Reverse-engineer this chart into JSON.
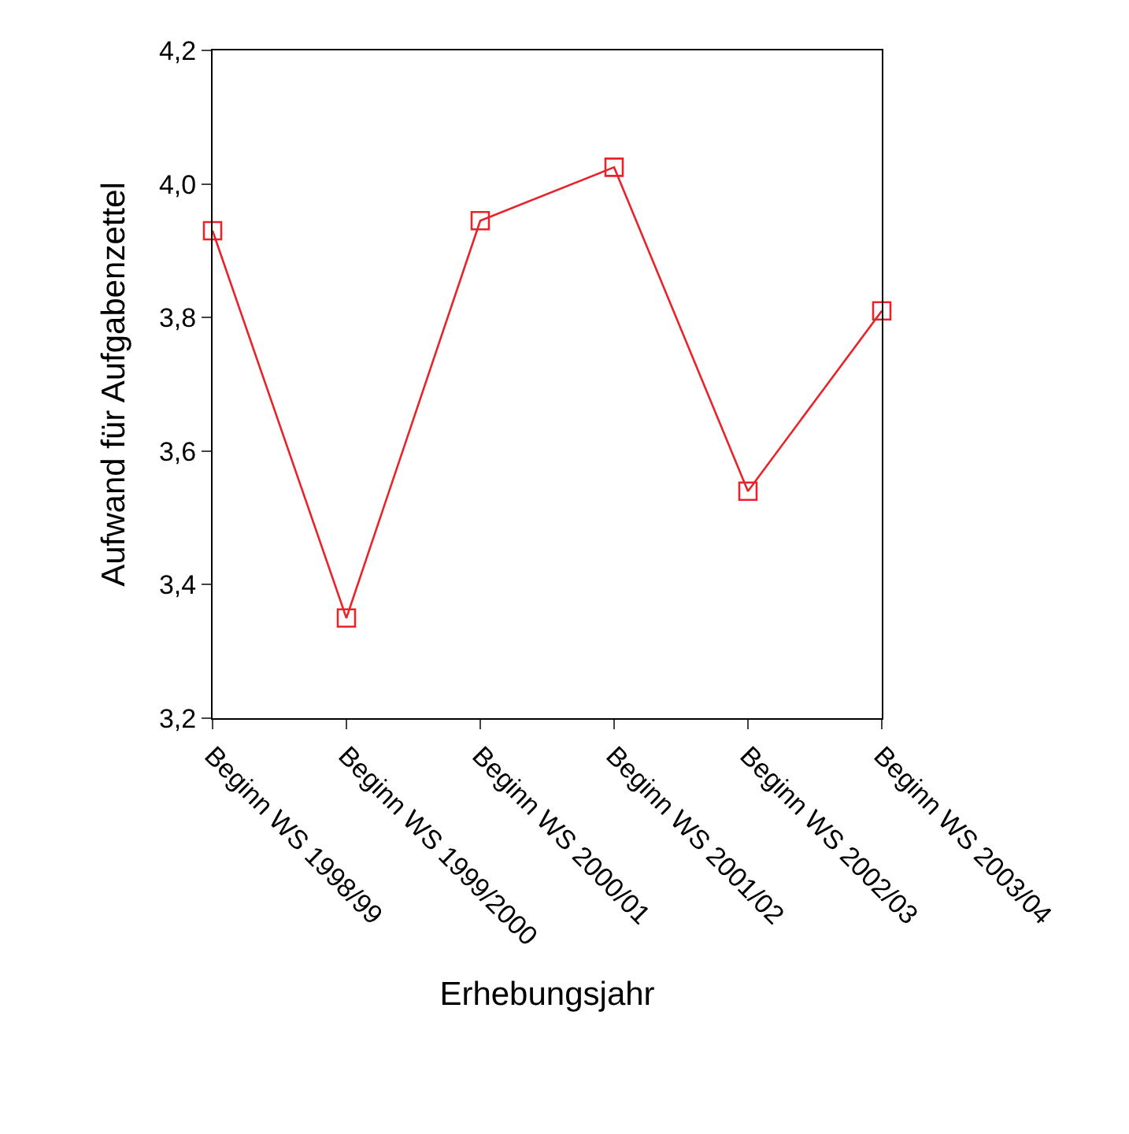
{
  "chart_data": {
    "type": "line",
    "xlabel": "Erhebungsjahr",
    "ylabel": "Aufwand für Aufgabenzettel",
    "categories": [
      "Beginn WS 1998/99",
      "Beginn WS 1999/2000",
      "Beginn WS 2000/01",
      "Beginn WS 2001/02",
      "Beginn WS 2002/03",
      "Beginn WS 2003/04"
    ],
    "series": [
      {
        "color": "#e8232a",
        "values": [
          3.93,
          3.35,
          3.945,
          4.025,
          3.54,
          3.81
        ]
      }
    ],
    "ylim": [
      3.2,
      4.2
    ],
    "yticks": [
      {
        "value": 3.2,
        "label": "3,2"
      },
      {
        "value": 3.4,
        "label": "3,4"
      },
      {
        "value": 3.6,
        "label": "3,6"
      },
      {
        "value": 3.8,
        "label": "3,8"
      },
      {
        "value": 4.0,
        "label": "4,0"
      },
      {
        "value": 4.2,
        "label": "4,2"
      }
    ],
    "legend": false,
    "marker": "square",
    "line_style": "solid"
  }
}
